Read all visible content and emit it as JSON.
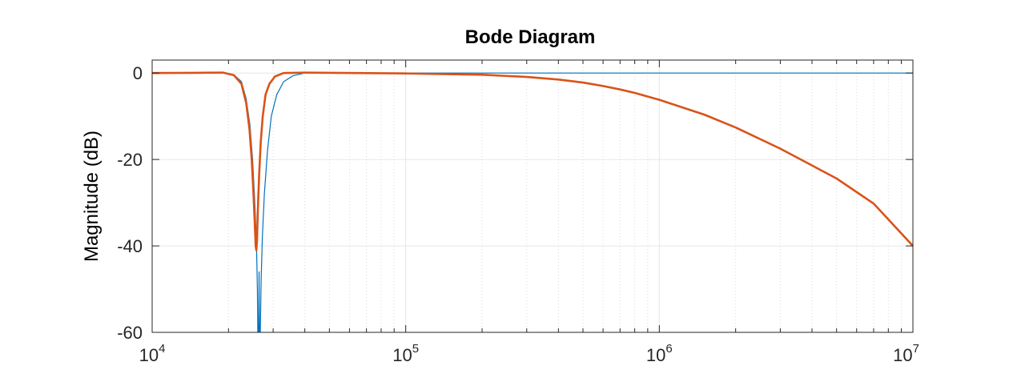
{
  "chart_data": {
    "type": "line",
    "title": "Bode Diagram",
    "ylabel": "Magnitude (dB)",
    "xlabel": "",
    "x_scale": "log",
    "xlim": [
      10000,
      10000000
    ],
    "ylim": [
      -60,
      3
    ],
    "grid": true,
    "minor_grid": true,
    "x_ticks": [
      {
        "base": "10",
        "exp": "4"
      },
      {
        "base": "10",
        "exp": "5"
      },
      {
        "base": "10",
        "exp": "6"
      },
      {
        "base": "10",
        "exp": "7"
      }
    ],
    "y_ticks": [
      "0",
      "-20",
      "-40",
      "-60"
    ],
    "y_tick_values": [
      0,
      -20,
      -40,
      -60
    ],
    "series": [
      {
        "color": "#0072BD",
        "points": [
          [
            10000,
            0
          ],
          [
            15000,
            0.1
          ],
          [
            19000,
            0.05
          ],
          [
            21000,
            -0.4
          ],
          [
            22500,
            -2
          ],
          [
            23500,
            -6
          ],
          [
            24300,
            -12
          ],
          [
            24900,
            -20
          ],
          [
            25400,
            -30
          ],
          [
            25800,
            -40
          ],
          [
            26000,
            -50
          ],
          [
            26100,
            -60
          ],
          [
            26300,
            -60
          ],
          [
            26400,
            -46
          ],
          [
            26500,
            -60
          ],
          [
            26700,
            -60
          ],
          [
            26900,
            -48
          ],
          [
            27200,
            -38
          ],
          [
            27700,
            -28
          ],
          [
            28500,
            -18
          ],
          [
            29500,
            -10
          ],
          [
            31000,
            -5
          ],
          [
            33000,
            -2
          ],
          [
            36000,
            -0.6
          ],
          [
            40000,
            0
          ],
          [
            60000,
            0
          ],
          [
            100000,
            0
          ],
          [
            1000000,
            0
          ],
          [
            10000000,
            0
          ]
        ]
      },
      {
        "color": "#D95319",
        "points": [
          [
            10000,
            0
          ],
          [
            15000,
            0.05
          ],
          [
            19000,
            0.1
          ],
          [
            21000,
            -0.5
          ],
          [
            22500,
            -2.5
          ],
          [
            23500,
            -7
          ],
          [
            24200,
            -13
          ],
          [
            24700,
            -20
          ],
          [
            25100,
            -28
          ],
          [
            25400,
            -35
          ],
          [
            25600,
            -40
          ],
          [
            25750,
            -41
          ],
          [
            25900,
            -39
          ],
          [
            26100,
            -32
          ],
          [
            26400,
            -24
          ],
          [
            26800,
            -16
          ],
          [
            27300,
            -10
          ],
          [
            28000,
            -5
          ],
          [
            29000,
            -2.5
          ],
          [
            30500,
            -0.8
          ],
          [
            33000,
            0
          ],
          [
            40000,
            0.1
          ],
          [
            100000,
            -0.1
          ],
          [
            200000,
            -0.4
          ],
          [
            300000,
            -0.9
          ],
          [
            400000,
            -1.5
          ],
          [
            500000,
            -2.2
          ],
          [
            600000,
            -3
          ],
          [
            700000,
            -3.8
          ],
          [
            800000,
            -4.6
          ],
          [
            1000000,
            -6.2
          ],
          [
            1500000,
            -9.6
          ],
          [
            2000000,
            -12.6
          ],
          [
            3000000,
            -17.5
          ],
          [
            5000000,
            -24.4
          ],
          [
            7000000,
            -30.2
          ],
          [
            10000000,
            -40
          ]
        ]
      }
    ]
  }
}
